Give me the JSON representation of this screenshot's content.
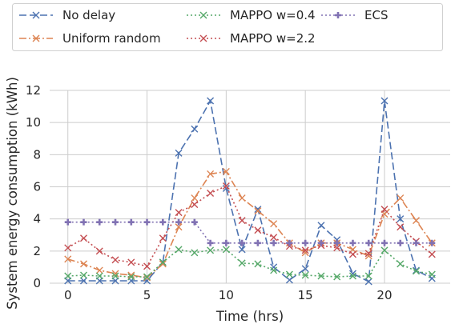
{
  "chart_data": {
    "type": "line",
    "title": "",
    "xlabel": "Time (hrs)",
    "ylabel": "System energy consumption (kWh)",
    "xlim": [
      -1.15,
      24.15
    ],
    "ylim": [
      0,
      12
    ],
    "xticks": [
      0,
      5,
      10,
      15,
      20
    ],
    "yticks": [
      0,
      2,
      4,
      6,
      8,
      10,
      12
    ],
    "grid": true,
    "legend_position": "top",
    "x": [
      0,
      1,
      2,
      3,
      4,
      5,
      6,
      7,
      8,
      9,
      10,
      11,
      12,
      13,
      14,
      15,
      16,
      17,
      18,
      19,
      20,
      21,
      22,
      23
    ],
    "series": [
      {
        "name": "No delay",
        "color": "#4c72b0",
        "dash": "dashed",
        "marker": "x",
        "values": [
          0.15,
          0.15,
          0.15,
          0.15,
          0.15,
          0.15,
          1.3,
          8.1,
          9.6,
          11.35,
          5.9,
          2.1,
          4.6,
          1.0,
          0.2,
          0.9,
          3.6,
          2.7,
          0.6,
          0.1,
          11.35,
          4.0,
          0.8,
          0.3
        ]
      },
      {
        "name": "Uniform random",
        "color": "#dd8452",
        "dash": "dashdot",
        "marker": "x",
        "values": [
          1.5,
          1.2,
          0.8,
          0.6,
          0.5,
          0.35,
          1.2,
          3.5,
          5.3,
          6.8,
          6.95,
          5.3,
          4.5,
          3.7,
          2.5,
          1.9,
          2.5,
          2.5,
          2.1,
          1.7,
          4.3,
          5.3,
          3.9,
          2.5
        ]
      },
      {
        "name": "MAPPO w=0.4",
        "color": "#55a868",
        "dash": "dotted",
        "marker": "x",
        "values": [
          0.45,
          0.5,
          0.45,
          0.45,
          0.4,
          0.4,
          1.3,
          2.1,
          1.9,
          2.05,
          2.1,
          1.25,
          1.2,
          0.8,
          0.55,
          0.5,
          0.45,
          0.4,
          0.45,
          0.45,
          2.05,
          1.2,
          0.75,
          0.55
        ]
      },
      {
        "name": "MAPPO w=2.2",
        "color": "#c44e52",
        "dash": "dotted",
        "marker": "x",
        "values": [
          2.2,
          2.8,
          2.0,
          1.45,
          1.3,
          1.05,
          2.8,
          4.4,
          4.9,
          5.6,
          6.05,
          3.9,
          3.3,
          2.85,
          2.3,
          2.05,
          2.35,
          2.2,
          1.8,
          1.85,
          4.6,
          3.5,
          2.6,
          1.8
        ]
      },
      {
        "name": "ECS",
        "color": "#8172b3",
        "dash": "dotted",
        "marker": "plus",
        "values": [
          3.8,
          3.8,
          3.8,
          3.8,
          3.8,
          3.8,
          3.8,
          3.8,
          3.8,
          2.5,
          2.5,
          2.5,
          2.5,
          2.5,
          2.5,
          2.5,
          2.5,
          2.5,
          2.5,
          2.5,
          2.5,
          2.5,
          2.5,
          2.5
        ]
      }
    ]
  }
}
